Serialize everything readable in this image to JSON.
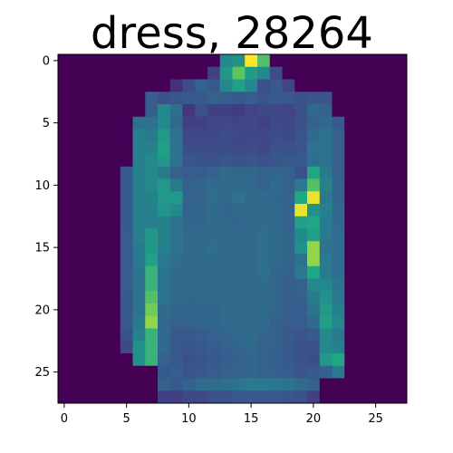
{
  "title": "dress, 28264",
  "image": {
    "type": "heatmap",
    "colormap": "viridis",
    "rows": 28,
    "cols": 28,
    "value_range": [
      0,
      255
    ],
    "x_ticks": [
      0,
      5,
      10,
      15,
      20,
      25
    ],
    "y_ticks": [
      0,
      5,
      10,
      15,
      20,
      25
    ],
    "x_range": [
      -0.5,
      27.5
    ],
    "y_range": [
      27.5,
      -0.5
    ],
    "pixels": [
      [
        0,
        0,
        0,
        0,
        0,
        0,
        0,
        0,
        0,
        0,
        0,
        0,
        0,
        150,
        160,
        255,
        210,
        0,
        0,
        0,
        0,
        0,
        0,
        0,
        0,
        0,
        0,
        0
      ],
      [
        0,
        0,
        0,
        0,
        0,
        0,
        0,
        0,
        0,
        0,
        0,
        0,
        60,
        170,
        215,
        175,
        150,
        75,
        0,
        0,
        0,
        0,
        0,
        0,
        0,
        0,
        0,
        0
      ],
      [
        0,
        0,
        0,
        0,
        0,
        0,
        0,
        0,
        0,
        45,
        75,
        100,
        90,
        150,
        180,
        150,
        80,
        90,
        65,
        0,
        0,
        0,
        0,
        0,
        0,
        0,
        0,
        0
      ],
      [
        0,
        0,
        0,
        0,
        0,
        0,
        0,
        95,
        80,
        85,
        90,
        90,
        100,
        95,
        90,
        95,
        85,
        90,
        90,
        80,
        85,
        85,
        0,
        0,
        0,
        0,
        0,
        0
      ],
      [
        0,
        0,
        0,
        0,
        0,
        0,
        0,
        95,
        150,
        115,
        50,
        80,
        60,
        60,
        55,
        65,
        70,
        70,
        65,
        80,
        110,
        100,
        0,
        0,
        0,
        0,
        0,
        0
      ],
      [
        0,
        0,
        0,
        0,
        0,
        0,
        120,
        120,
        150,
        110,
        60,
        60,
        65,
        70,
        65,
        70,
        60,
        70,
        70,
        80,
        100,
        110,
        90,
        0,
        0,
        0,
        0,
        0
      ],
      [
        0,
        0,
        0,
        0,
        0,
        0,
        140,
        130,
        170,
        120,
        70,
        70,
        70,
        75,
        70,
        70,
        70,
        75,
        70,
        85,
        110,
        120,
        100,
        0,
        0,
        0,
        0,
        0
      ],
      [
        0,
        0,
        0,
        0,
        0,
        0,
        140,
        140,
        180,
        120,
        75,
        75,
        75,
        75,
        70,
        75,
        70,
        80,
        80,
        85,
        120,
        120,
        100,
        0,
        0,
        0,
        0,
        0
      ],
      [
        0,
        0,
        0,
        0,
        0,
        0,
        140,
        150,
        170,
        120,
        85,
        80,
        80,
        85,
        80,
        85,
        80,
        85,
        90,
        90,
        115,
        120,
        100,
        0,
        0,
        0,
        0,
        0
      ],
      [
        0,
        0,
        0,
        0,
        0,
        90,
        140,
        150,
        130,
        100,
        95,
        95,
        100,
        110,
        105,
        105,
        100,
        105,
        100,
        80,
        190,
        130,
        100,
        0,
        0,
        0,
        0,
        0
      ],
      [
        0,
        0,
        0,
        0,
        0,
        90,
        140,
        150,
        170,
        130,
        100,
        105,
        110,
        110,
        110,
        110,
        100,
        110,
        100,
        130,
        210,
        140,
        105,
        0,
        0,
        0,
        0,
        0
      ],
      [
        0,
        0,
        0,
        0,
        0,
        90,
        140,
        140,
        170,
        170,
        100,
        105,
        115,
        110,
        120,
        110,
        110,
        105,
        100,
        190,
        250,
        130,
        105,
        0,
        0,
        0,
        0,
        0
      ],
      [
        0,
        0,
        0,
        0,
        0,
        90,
        140,
        140,
        165,
        150,
        100,
        105,
        110,
        105,
        110,
        110,
        110,
        110,
        100,
        250,
        160,
        140,
        110,
        0,
        0,
        0,
        0,
        0
      ],
      [
        0,
        0,
        0,
        0,
        0,
        90,
        140,
        140,
        140,
        120,
        105,
        105,
        110,
        110,
        105,
        110,
        110,
        110,
        100,
        180,
        190,
        130,
        110,
        0,
        0,
        0,
        0,
        0
      ],
      [
        0,
        0,
        0,
        0,
        0,
        95,
        140,
        170,
        140,
        120,
        110,
        110,
        110,
        110,
        110,
        110,
        115,
        110,
        105,
        150,
        180,
        130,
        115,
        0,
        0,
        0,
        0,
        0
      ],
      [
        0,
        0,
        0,
        0,
        0,
        95,
        130,
        170,
        140,
        120,
        110,
        110,
        115,
        110,
        110,
        110,
        115,
        110,
        105,
        160,
        230,
        120,
        115,
        0,
        0,
        0,
        0,
        0
      ],
      [
        0,
        0,
        0,
        0,
        0,
        95,
        130,
        180,
        130,
        115,
        110,
        110,
        110,
        110,
        110,
        110,
        115,
        110,
        105,
        120,
        230,
        130,
        115,
        0,
        0,
        0,
        0,
        0
      ],
      [
        0,
        0,
        0,
        0,
        0,
        95,
        125,
        200,
        125,
        110,
        110,
        110,
        110,
        110,
        110,
        110,
        115,
        105,
        100,
        130,
        190,
        130,
        115,
        0,
        0,
        0,
        0,
        0
      ],
      [
        0,
        0,
        0,
        0,
        0,
        95,
        120,
        200,
        120,
        110,
        110,
        110,
        110,
        110,
        110,
        110,
        110,
        105,
        95,
        100,
        150,
        150,
        125,
        0,
        0,
        0,
        0,
        0
      ],
      [
        0,
        0,
        0,
        0,
        0,
        90,
        120,
        210,
        120,
        110,
        105,
        110,
        110,
        110,
        110,
        110,
        110,
        105,
        95,
        100,
        130,
        160,
        130,
        0,
        0,
        0,
        0,
        0
      ],
      [
        0,
        0,
        0,
        0,
        0,
        90,
        120,
        220,
        110,
        105,
        105,
        105,
        105,
        110,
        110,
        110,
        110,
        105,
        95,
        95,
        120,
        170,
        140,
        0,
        0,
        0,
        0,
        0
      ],
      [
        0,
        0,
        0,
        0,
        0,
        90,
        130,
        230,
        110,
        100,
        100,
        105,
        105,
        110,
        110,
        110,
        110,
        100,
        95,
        95,
        110,
        180,
        150,
        0,
        0,
        0,
        0,
        0
      ],
      [
        0,
        0,
        0,
        0,
        0,
        80,
        140,
        200,
        110,
        90,
        90,
        95,
        100,
        105,
        110,
        110,
        105,
        100,
        90,
        85,
        90,
        150,
        130,
        0,
        0,
        0,
        0,
        0
      ],
      [
        0,
        0,
        0,
        0,
        0,
        70,
        160,
        200,
        110,
        90,
        85,
        90,
        95,
        100,
        105,
        110,
        100,
        100,
        90,
        80,
        80,
        150,
        140,
        0,
        0,
        0,
        0,
        0
      ],
      [
        0,
        0,
        0,
        0,
        0,
        0,
        160,
        200,
        100,
        90,
        80,
        85,
        90,
        95,
        100,
        105,
        100,
        95,
        90,
        80,
        75,
        170,
        190,
        0,
        0,
        0,
        0,
        0
      ],
      [
        0,
        0,
        0,
        0,
        0,
        0,
        0,
        0,
        90,
        95,
        85,
        90,
        95,
        100,
        100,
        105,
        100,
        100,
        95,
        85,
        90,
        100,
        130,
        0,
        0,
        0,
        0,
        0
      ],
      [
        0,
        0,
        0,
        0,
        0,
        0,
        0,
        0,
        100,
        90,
        100,
        110,
        110,
        115,
        120,
        130,
        130,
        125,
        120,
        110,
        100,
        0,
        0,
        0,
        0,
        0,
        0,
        0
      ],
      [
        0,
        0,
        0,
        0,
        0,
        0,
        0,
        0,
        60,
        60,
        70,
        70,
        80,
        80,
        90,
        90,
        90,
        90,
        85,
        80,
        60,
        0,
        0,
        0,
        0,
        0,
        0,
        0
      ]
    ]
  }
}
